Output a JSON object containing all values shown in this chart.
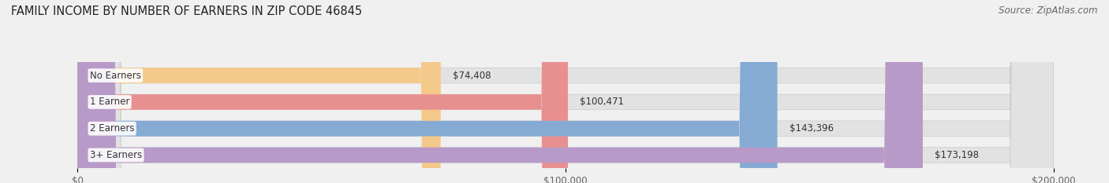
{
  "title": "FAMILY INCOME BY NUMBER OF EARNERS IN ZIP CODE 46845",
  "source": "Source: ZipAtlas.com",
  "categories": [
    "No Earners",
    "1 Earner",
    "2 Earners",
    "3+ Earners"
  ],
  "values": [
    74408,
    100471,
    143396,
    173198
  ],
  "labels": [
    "$74,408",
    "$100,471",
    "$143,396",
    "$173,198"
  ],
  "bar_colors": [
    "#f5c98a",
    "#e89090",
    "#85aad4",
    "#b89ac8"
  ],
  "background_color": "#f0f0f0",
  "bar_bg_color": "#e2e2e2",
  "xlim": [
    0,
    200000
  ],
  "xtick_values": [
    0,
    100000,
    200000
  ],
  "xtick_labels": [
    "$0",
    "$100,000",
    "$200,000"
  ],
  "title_fontsize": 10.5,
  "source_fontsize": 8.5,
  "label_fontsize": 8.5,
  "category_fontsize": 8.5,
  "bar_height": 0.58,
  "fig_width": 14.06,
  "fig_height": 2.33
}
